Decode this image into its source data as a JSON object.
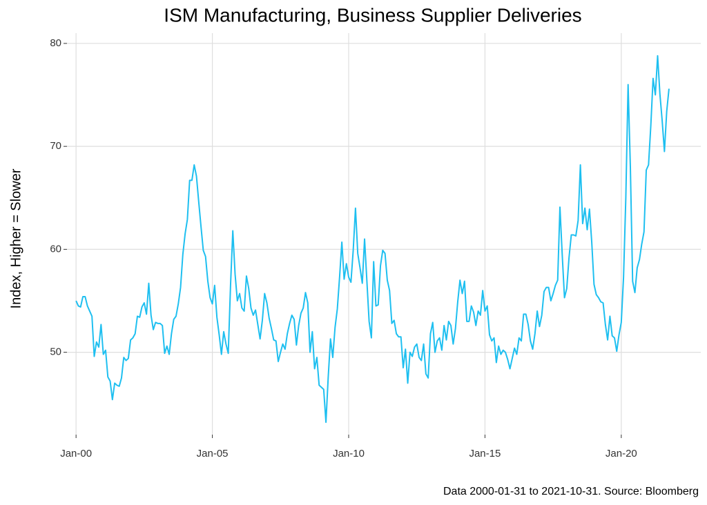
{
  "chart_data": {
    "type": "line",
    "title": "ISM Manufacturing, Business Supplier Deliveries",
    "y_label": "Index, Higher = Slower",
    "caption": "Data 2000-01-31 to 2021-10-31.  Source: Bloomberg",
    "x": [
      "2000-01",
      "2000-02",
      "2000-03",
      "2000-04",
      "2000-05",
      "2000-06",
      "2000-07",
      "2000-08",
      "2000-09",
      "2000-10",
      "2000-11",
      "2000-12",
      "2001-01",
      "2001-02",
      "2001-03",
      "2001-04",
      "2001-05",
      "2001-06",
      "2001-07",
      "2001-08",
      "2001-09",
      "2001-10",
      "2001-11",
      "2001-12",
      "2002-01",
      "2002-02",
      "2002-03",
      "2002-04",
      "2002-05",
      "2002-06",
      "2002-07",
      "2002-08",
      "2002-09",
      "2002-10",
      "2002-11",
      "2002-12",
      "2003-01",
      "2003-02",
      "2003-03",
      "2003-04",
      "2003-05",
      "2003-06",
      "2003-07",
      "2003-08",
      "2003-09",
      "2003-10",
      "2003-11",
      "2003-12",
      "2004-01",
      "2004-02",
      "2004-03",
      "2004-04",
      "2004-05",
      "2004-06",
      "2004-07",
      "2004-08",
      "2004-09",
      "2004-10",
      "2004-11",
      "2004-12",
      "2005-01",
      "2005-02",
      "2005-03",
      "2005-04",
      "2005-05",
      "2005-06",
      "2005-07",
      "2005-08",
      "2005-09",
      "2005-10",
      "2005-11",
      "2005-12",
      "2006-01",
      "2006-02",
      "2006-03",
      "2006-04",
      "2006-05",
      "2006-06",
      "2006-07",
      "2006-08",
      "2006-09",
      "2006-10",
      "2006-11",
      "2006-12",
      "2007-01",
      "2007-02",
      "2007-03",
      "2007-04",
      "2007-05",
      "2007-06",
      "2007-07",
      "2007-08",
      "2007-09",
      "2007-10",
      "2007-11",
      "2007-12",
      "2008-01",
      "2008-02",
      "2008-03",
      "2008-04",
      "2008-05",
      "2008-06",
      "2008-07",
      "2008-08",
      "2008-09",
      "2008-10",
      "2008-11",
      "2008-12",
      "2009-01",
      "2009-02",
      "2009-03",
      "2009-04",
      "2009-05",
      "2009-06",
      "2009-07",
      "2009-08",
      "2009-09",
      "2009-10",
      "2009-11",
      "2009-12",
      "2010-01",
      "2010-02",
      "2010-03",
      "2010-04",
      "2010-05",
      "2010-06",
      "2010-07",
      "2010-08",
      "2010-09",
      "2010-10",
      "2010-11",
      "2010-12",
      "2011-01",
      "2011-02",
      "2011-03",
      "2011-04",
      "2011-05",
      "2011-06",
      "2011-07",
      "2011-08",
      "2011-09",
      "2011-10",
      "2011-11",
      "2011-12",
      "2012-01",
      "2012-02",
      "2012-03",
      "2012-04",
      "2012-05",
      "2012-06",
      "2012-07",
      "2012-08",
      "2012-09",
      "2012-10",
      "2012-11",
      "2012-12",
      "2013-01",
      "2013-02",
      "2013-03",
      "2013-04",
      "2013-05",
      "2013-06",
      "2013-07",
      "2013-08",
      "2013-09",
      "2013-10",
      "2013-11",
      "2013-12",
      "2014-01",
      "2014-02",
      "2014-03",
      "2014-04",
      "2014-05",
      "2014-06",
      "2014-07",
      "2014-08",
      "2014-09",
      "2014-10",
      "2014-11",
      "2014-12",
      "2015-01",
      "2015-02",
      "2015-03",
      "2015-04",
      "2015-05",
      "2015-06",
      "2015-07",
      "2015-08",
      "2015-09",
      "2015-10",
      "2015-11",
      "2015-12",
      "2016-01",
      "2016-02",
      "2016-03",
      "2016-04",
      "2016-05",
      "2016-06",
      "2016-07",
      "2016-08",
      "2016-09",
      "2016-10",
      "2016-11",
      "2016-12",
      "2017-01",
      "2017-02",
      "2017-03",
      "2017-04",
      "2017-05",
      "2017-06",
      "2017-07",
      "2017-08",
      "2017-09",
      "2017-10",
      "2017-11",
      "2017-12",
      "2018-01",
      "2018-02",
      "2018-03",
      "2018-04",
      "2018-05",
      "2018-06",
      "2018-07",
      "2018-08",
      "2018-09",
      "2018-10",
      "2018-11",
      "2018-12",
      "2019-01",
      "2019-02",
      "2019-03",
      "2019-04",
      "2019-05",
      "2019-06",
      "2019-07",
      "2019-08",
      "2019-09",
      "2019-10",
      "2019-11",
      "2019-12",
      "2020-01",
      "2020-02",
      "2020-03",
      "2020-04",
      "2020-05",
      "2020-06",
      "2020-07",
      "2020-08",
      "2020-09",
      "2020-10",
      "2020-11",
      "2020-12",
      "2021-01",
      "2021-02",
      "2021-03",
      "2021-04",
      "2021-05",
      "2021-06",
      "2021-07",
      "2021-08",
      "2021-09",
      "2021-10"
    ],
    "series": [
      {
        "color": "#1ebff0",
        "values": [
          55,
          54.5,
          54.4,
          55.4,
          55.4,
          54.5,
          54,
          53.5,
          49.6,
          51,
          50.5,
          52.7,
          49.8,
          50.2,
          47.6,
          47.2,
          45.4,
          47,
          46.8,
          46.7,
          47.5,
          49.5,
          49.2,
          49.4,
          51.2,
          51.4,
          51.8,
          53.5,
          53.4,
          54.4,
          54.8,
          53.7,
          56.7,
          53.6,
          52.2,
          52.9,
          52.8,
          52.8,
          52.6,
          49.9,
          50.6,
          49.8,
          51.8,
          53.2,
          53.5,
          54.7,
          56.3,
          59.5,
          61.5,
          62.9,
          66.7,
          66.7,
          68.2,
          67.1,
          64.6,
          62.2,
          59.9,
          59.3,
          56.9,
          55.3,
          54.7,
          56.5,
          53.4,
          51.7,
          49.8,
          52,
          50.8,
          49.9,
          56.5,
          61.8,
          57.6,
          55,
          55.7,
          54.3,
          54,
          57.4,
          56.2,
          54.3,
          53.6,
          54.1,
          52.7,
          51.3,
          53.1,
          55.7,
          54.8,
          53.3,
          52.3,
          51.2,
          51.1,
          49.1,
          50,
          50.8,
          50.3,
          51.8,
          52.8,
          53.6,
          53.2,
          50.7,
          52.6,
          53.8,
          54.3,
          55.8,
          54.8,
          50,
          52,
          48.4,
          49.5,
          46.8,
          46.6,
          46.4,
          43.2,
          47.6,
          51.3,
          49.5,
          52.4,
          54.2,
          57.3,
          60.7,
          57.1,
          58.6,
          57.3,
          56.8,
          59.9,
          64,
          59.6,
          58.2,
          56.7,
          61,
          57,
          53,
          51.4,
          58.8,
          54.5,
          54.6,
          58.4,
          59.9,
          59.6,
          57,
          56,
          52.8,
          53.1,
          51.8,
          51.5,
          51.5,
          48.5,
          50.3,
          47,
          50,
          49.6,
          50.5,
          50.8,
          49.5,
          49.2,
          50.8,
          47.9,
          47.5,
          51.8,
          52.9,
          50,
          51.1,
          51.4,
          50.2,
          52.6,
          51.2,
          53,
          52.6,
          50.8,
          52.3,
          54.9,
          57,
          55.7,
          56.9,
          53,
          53,
          54.5,
          53.9,
          52.6,
          54,
          53.6,
          56,
          54,
          54.5,
          51.7,
          51.1,
          51.4,
          49,
          50.6,
          49.8,
          50.2,
          50,
          49.3,
          48.4,
          49.4,
          50.4,
          49.8,
          51.4,
          51.1,
          53.7,
          53.7,
          52.7,
          51.1,
          50.3,
          51.8,
          54,
          52.5,
          53.6,
          55.9,
          56.3,
          56.3,
          55,
          55.7,
          56.5,
          57,
          64.1,
          59.5,
          55.3,
          56.2,
          59.2,
          61.4,
          61.4,
          61.3,
          62.8,
          68.2,
          62.5,
          64,
          61.9,
          63.9,
          60.7,
          56.6,
          55.6,
          55.3,
          54.9,
          54.8,
          52.7,
          51.2,
          53.5,
          51.6,
          51.4,
          50.1,
          51.7,
          52.9,
          57.3,
          65,
          76,
          68,
          56.9,
          55.8,
          58.2,
          59,
          60.5,
          61.7,
          67.7,
          68.2,
          72,
          76.6,
          75,
          78.8,
          75.1,
          72.5,
          69.5,
          73.4,
          75.6
        ]
      }
    ],
    "xlim": [
      "1999-09",
      "2022-12"
    ],
    "xticks": [
      {
        "value": "2000-01",
        "label": "Jan-00"
      },
      {
        "value": "2005-01",
        "label": "Jan-05"
      },
      {
        "value": "2010-01",
        "label": "Jan-10"
      },
      {
        "value": "2015-01",
        "label": "Jan-15"
      },
      {
        "value": "2020-01",
        "label": "Jan-20"
      }
    ],
    "ylim": [
      42,
      81
    ],
    "yticks": [
      50,
      60,
      70,
      80
    ],
    "grid": true
  }
}
